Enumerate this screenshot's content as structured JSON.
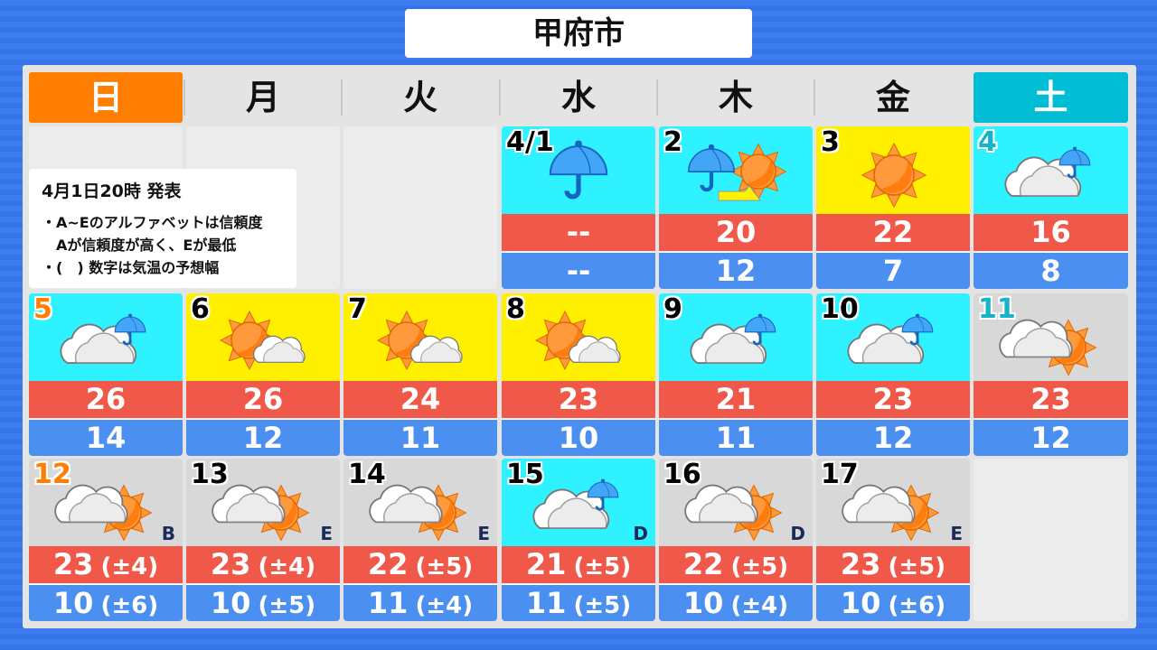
{
  "title": "甲府市",
  "weekdays": [
    "日",
    "月",
    "火",
    "水",
    "木",
    "金",
    "土"
  ],
  "note": {
    "issued": "4月1日20時 発表",
    "lines": [
      "・A~Eのアルファベットは信頼度",
      "　Aが信頼度が高く、Eが最低",
      "・(　) 数字は気温の予想幅"
    ]
  },
  "colors": {
    "sunday": "#ff7d00",
    "saturday": "#00bcd4",
    "high": "#f0584a",
    "low": "#4b8ff0",
    "rain_bg": "#2ef2ff",
    "sun_bg": "#fff000",
    "cloud_bg": "#d8d8d8"
  },
  "weeks": [
    [
      null,
      null,
      null,
      {
        "date": "4/1",
        "icon": "rain",
        "bg": "cyan",
        "high": "--",
        "low": "--"
      },
      {
        "date": "2",
        "icon": "rain-then-sun",
        "bg": "cyan",
        "high": "20",
        "low": "12"
      },
      {
        "date": "3",
        "icon": "sun",
        "bg": "yellow",
        "high": "22",
        "low": "7"
      },
      {
        "date": "4",
        "icon": "cloud-rain",
        "bg": "cyan",
        "high": "16",
        "low": "8"
      }
    ],
    [
      {
        "date": "5",
        "icon": "cloud-rain",
        "bg": "cyan",
        "high": "26",
        "low": "14"
      },
      {
        "date": "6",
        "icon": "sun-cloud",
        "bg": "yellow",
        "high": "26",
        "low": "12"
      },
      {
        "date": "7",
        "icon": "sun-cloud",
        "bg": "yellow",
        "high": "24",
        "low": "11"
      },
      {
        "date": "8",
        "icon": "sun-cloud",
        "bg": "yellow",
        "high": "23",
        "low": "10"
      },
      {
        "date": "9",
        "icon": "cloud-rain",
        "bg": "cyan",
        "high": "21",
        "low": "11"
      },
      {
        "date": "10",
        "icon": "cloud-rain",
        "bg": "cyan",
        "high": "23",
        "low": "12"
      },
      {
        "date": "11",
        "icon": "cloud-sun",
        "bg": "gray",
        "high": "23",
        "low": "12"
      }
    ],
    [
      {
        "date": "12",
        "icon": "cloud-sun",
        "bg": "gray",
        "high": "23",
        "high_range": "(±4)",
        "low": "10",
        "low_range": "(±6)",
        "reliability": "B"
      },
      {
        "date": "13",
        "icon": "cloud-sun",
        "bg": "gray",
        "high": "23",
        "high_range": "(±4)",
        "low": "10",
        "low_range": "(±5)",
        "reliability": "E"
      },
      {
        "date": "14",
        "icon": "cloud-sun",
        "bg": "gray",
        "high": "22",
        "high_range": "(±5)",
        "low": "11",
        "low_range": "(±4)",
        "reliability": "E"
      },
      {
        "date": "15",
        "icon": "cloud-rain",
        "bg": "cyan",
        "high": "21",
        "high_range": "(±5)",
        "low": "11",
        "low_range": "(±5)",
        "reliability": "D"
      },
      {
        "date": "16",
        "icon": "cloud-sun",
        "bg": "gray",
        "high": "22",
        "high_range": "(±5)",
        "low": "10",
        "low_range": "(±4)",
        "reliability": "D"
      },
      {
        "date": "17",
        "icon": "cloud-sun",
        "bg": "gray",
        "high": "23",
        "high_range": "(±5)",
        "low": "10",
        "low_range": "(±6)",
        "reliability": "E"
      },
      null
    ]
  ]
}
